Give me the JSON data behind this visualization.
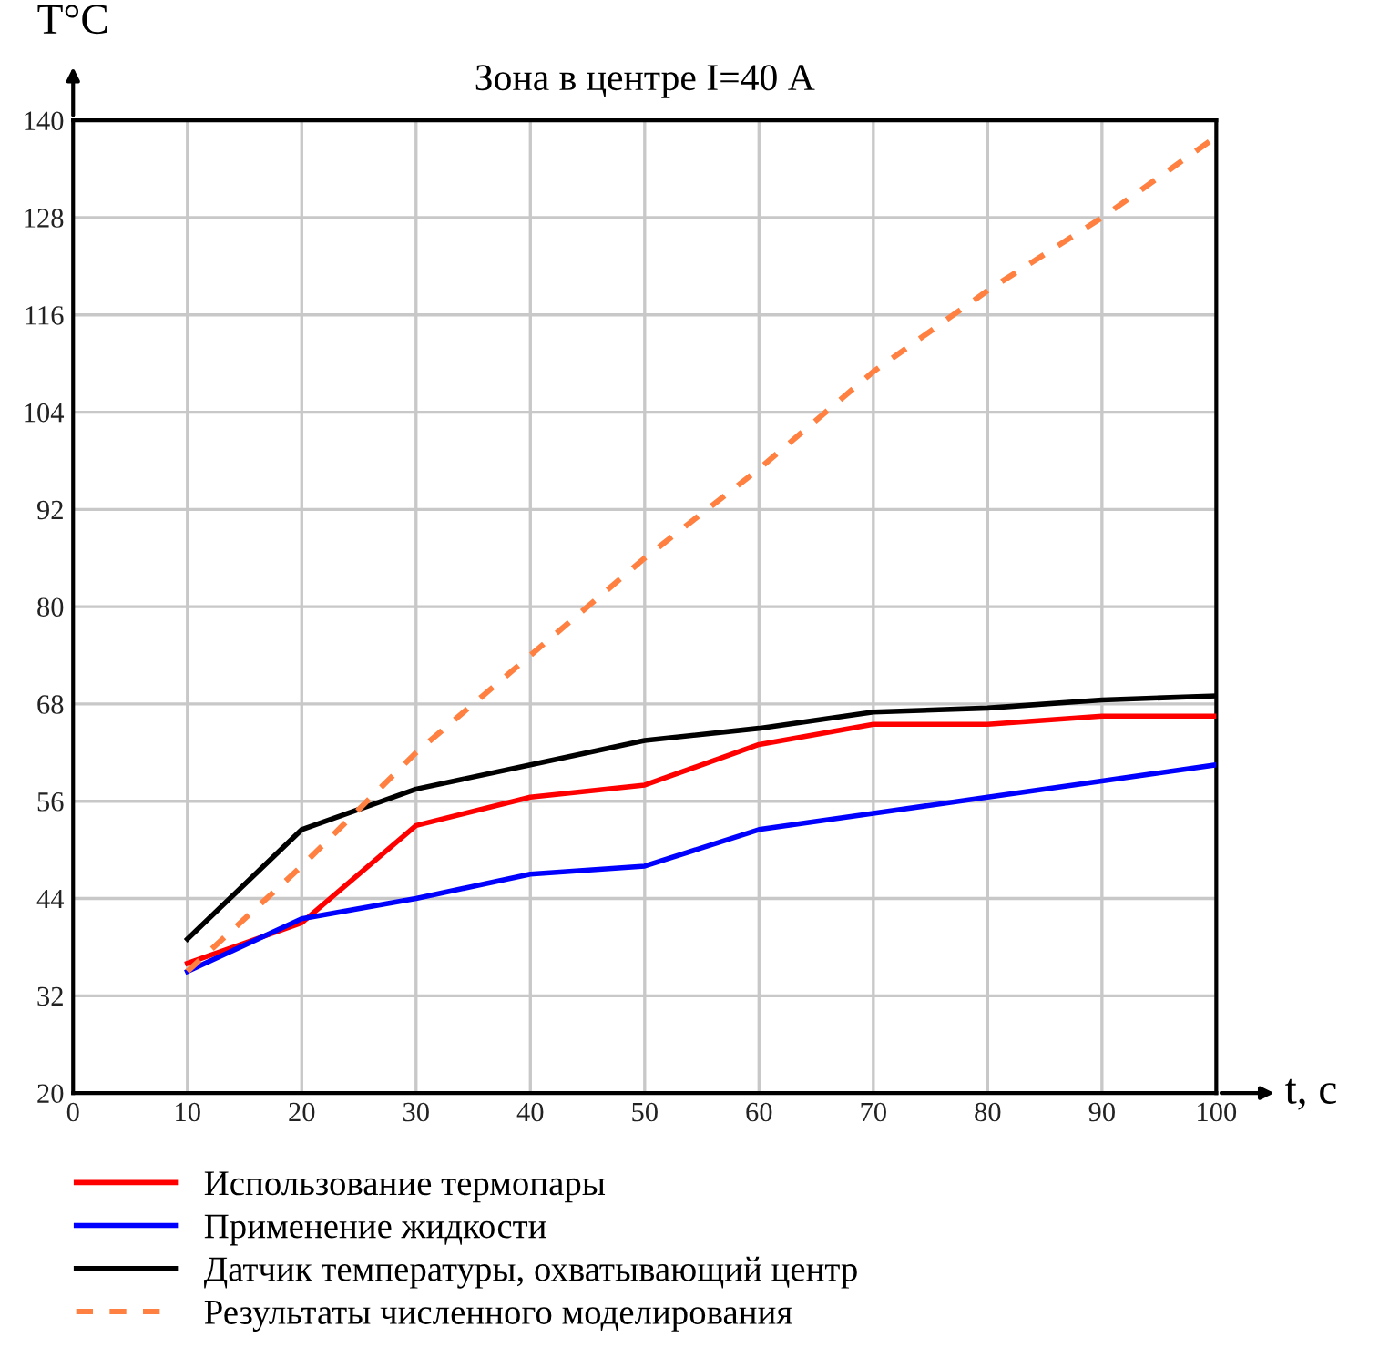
{
  "chart_data": {
    "type": "line",
    "title": "Зона в центре I=40 А",
    "xlabel": "t, с",
    "ylabel": "T°C",
    "x": [
      10,
      20,
      30,
      40,
      50,
      60,
      70,
      80,
      90,
      100
    ],
    "series": [
      {
        "name": "Использование термопары",
        "color": "#ff0000",
        "values": [
          36,
          41,
          53,
          56.5,
          58,
          63,
          65.5,
          65.5,
          66.5,
          66.5
        ]
      },
      {
        "name": "Применение жидкости",
        "color": "#0000ff",
        "values": [
          35,
          41.5,
          44,
          47,
          48,
          52.5,
          54.5,
          56.5,
          58.5,
          60.5
        ]
      },
      {
        "name": "Датчик температуры, охватывающий центр",
        "color": "#000000",
        "values": [
          39,
          52.5,
          57.5,
          60.5,
          63.5,
          65,
          67,
          67.5,
          68.5,
          69
        ]
      },
      {
        "name": "Результаты численного моделирования",
        "color": "#ff8040",
        "line_style": "dashed",
        "values": [
          35,
          48,
          62,
          74,
          86,
          97,
          109,
          119,
          128,
          138
        ]
      }
    ],
    "xlim": [
      0,
      100
    ],
    "ylim": [
      20,
      140
    ],
    "xticks": [
      0,
      10,
      20,
      30,
      40,
      50,
      60,
      70,
      80,
      90,
      100
    ],
    "yticks": [
      20,
      32,
      44,
      56,
      68,
      80,
      92,
      104,
      116,
      128,
      140
    ],
    "grid": true,
    "legend": "bottom",
    "marker": "none"
  }
}
